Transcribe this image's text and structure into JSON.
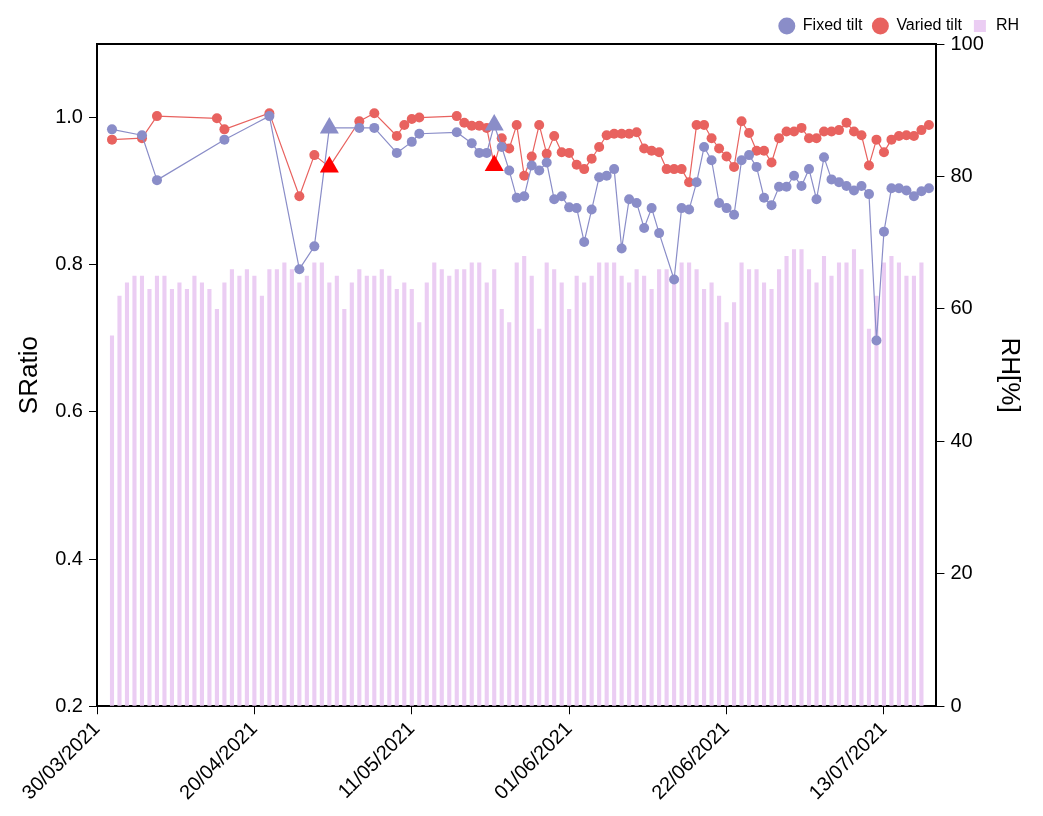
{
  "chart_data": {
    "type": "line",
    "ylabel": "SRatio",
    "y2label": "RH[%]",
    "xlim": [
      "2021-03-30",
      "2021-07-20"
    ],
    "xticks": [
      {
        "value": "2021-03-30",
        "label": "30/03/2021"
      },
      {
        "value": "2021-04-20",
        "label": "20/04/2021"
      },
      {
        "value": "2021-05-11",
        "label": "11/05/2021"
      },
      {
        "value": "2021-06-01",
        "label": "01/06/2021"
      },
      {
        "value": "2021-06-22",
        "label": "22/06/2021"
      },
      {
        "value": "2021-07-13",
        "label": "13/07/2021"
      }
    ],
    "ylim": [
      0.2,
      1.1
    ],
    "yticks": [
      0.2,
      0.4,
      0.6,
      0.8,
      {
        "value": 1.0,
        "label": "1.0"
      }
    ],
    "y2lim": [
      0,
      100
    ],
    "y2ticks": [
      0,
      20,
      40,
      60,
      80,
      100
    ],
    "grid": false,
    "legend": "top right",
    "marker": "circle",
    "x": [
      "2021-04-01",
      "2021-04-02",
      "2021-04-03",
      "2021-04-04",
      "2021-04-05",
      "2021-04-06",
      "2021-04-07",
      "2021-04-08",
      "2021-04-09",
      "2021-04-10",
      "2021-04-11",
      "2021-04-12",
      "2021-04-13",
      "2021-04-14",
      "2021-04-15",
      "2021-04-16",
      "2021-04-17",
      "2021-04-18",
      "2021-04-19",
      "2021-04-20",
      "2021-04-21",
      "2021-04-22",
      "2021-04-23",
      "2021-04-24",
      "2021-04-25",
      "2021-04-26",
      "2021-04-27",
      "2021-04-28",
      "2021-04-29",
      "2021-04-30",
      "2021-05-01",
      "2021-05-02",
      "2021-05-03",
      "2021-05-04",
      "2021-05-05",
      "2021-05-06",
      "2021-05-07",
      "2021-05-08",
      "2021-05-09",
      "2021-05-10",
      "2021-05-11",
      "2021-05-12",
      "2021-05-13",
      "2021-05-14",
      "2021-05-15",
      "2021-05-16",
      "2021-05-17",
      "2021-05-18",
      "2021-05-19",
      "2021-05-20",
      "2021-05-21",
      "2021-05-22",
      "2021-05-23",
      "2021-05-24",
      "2021-05-25",
      "2021-05-26",
      "2021-05-27",
      "2021-05-28",
      "2021-05-29",
      "2021-05-30",
      "2021-05-31",
      "2021-06-01",
      "2021-06-02",
      "2021-06-03",
      "2021-06-04",
      "2021-06-05",
      "2021-06-06",
      "2021-06-07",
      "2021-06-08",
      "2021-06-09",
      "2021-06-10",
      "2021-06-11",
      "2021-06-12",
      "2021-06-13",
      "2021-06-14",
      "2021-06-15",
      "2021-06-16",
      "2021-06-17",
      "2021-06-18",
      "2021-06-19",
      "2021-06-20",
      "2021-06-21",
      "2021-06-22",
      "2021-06-23",
      "2021-06-24",
      "2021-06-25",
      "2021-06-26",
      "2021-06-27",
      "2021-06-28",
      "2021-06-29",
      "2021-06-30",
      "2021-07-01",
      "2021-07-02",
      "2021-07-03",
      "2021-07-04",
      "2021-07-05",
      "2021-07-06",
      "2021-07-07",
      "2021-07-08",
      "2021-07-09",
      "2021-07-10",
      "2021-07-11",
      "2021-07-12",
      "2021-07-13",
      "2021-07-14",
      "2021-07-15",
      "2021-07-16",
      "2021-07-17",
      "2021-07-18"
    ],
    "series": [
      {
        "name": "Fixed tilt",
        "color": "#8a8dc8",
        "x": [
          "2021-04-01",
          "2021-04-05",
          "2021-04-07",
          "2021-04-16",
          "2021-04-22",
          "2021-04-26",
          "2021-04-28",
          "2021-04-30",
          "2021-05-04",
          "2021-05-06",
          "2021-05-09",
          "2021-05-11",
          "2021-05-12",
          "2021-05-17",
          "2021-05-19",
          "2021-05-20",
          "2021-05-21",
          "2021-05-22",
          "2021-05-23",
          "2021-05-24",
          "2021-05-25",
          "2021-05-26",
          "2021-05-27",
          "2021-05-28",
          "2021-05-29",
          "2021-05-30",
          "2021-05-31",
          "2021-06-01",
          "2021-06-02",
          "2021-06-03",
          "2021-06-04",
          "2021-06-05",
          "2021-06-06",
          "2021-06-07",
          "2021-06-08",
          "2021-06-09",
          "2021-06-10",
          "2021-06-11",
          "2021-06-12",
          "2021-06-13",
          "2021-06-15",
          "2021-06-16",
          "2021-06-17",
          "2021-06-18",
          "2021-06-19",
          "2021-06-20",
          "2021-06-21",
          "2021-06-22",
          "2021-06-23",
          "2021-06-24",
          "2021-06-25",
          "2021-06-26",
          "2021-06-27",
          "2021-06-28",
          "2021-06-29",
          "2021-06-30",
          "2021-07-01",
          "2021-07-02",
          "2021-07-03",
          "2021-07-04",
          "2021-07-05",
          "2021-07-06",
          "2021-07-07",
          "2021-07-08",
          "2021-07-09",
          "2021-07-10",
          "2021-07-11",
          "2021-07-12",
          "2021-07-13",
          "2021-07-14",
          "2021-07-15",
          "2021-07-16",
          "2021-07-17",
          "2021-07-18",
          "2021-07-19"
        ],
        "values": [
          0.984,
          0.976,
          0.915,
          0.97,
          1.002,
          0.794,
          0.825,
          0.986,
          0.986,
          0.986,
          0.952,
          0.967,
          0.978,
          0.98,
          0.965,
          0.952,
          0.952,
          0.99,
          0.96,
          0.928,
          0.891,
          0.893,
          0.935,
          0.928,
          0.939,
          0.889,
          0.893,
          0.878,
          0.877,
          0.831,
          0.875,
          0.919,
          0.921,
          0.93,
          0.822,
          0.889,
          0.884,
          0.85,
          0.877,
          0.843,
          0.78,
          0.877,
          0.875,
          0.912,
          0.96,
          0.942,
          0.884,
          0.877,
          0.868,
          0.942,
          0.949,
          0.933,
          0.891,
          0.881,
          0.906,
          0.906,
          0.921,
          0.907,
          0.93,
          0.889,
          0.946,
          0.916,
          0.912,
          0.907,
          0.901,
          0.907,
          0.896,
          0.697,
          0.845,
          0.904,
          0.904,
          0.901,
          0.893,
          0.9,
          0.904
        ]
      },
      {
        "name": "Varied tilt",
        "color": "#e8625f",
        "x": [
          "2021-04-01",
          "2021-04-05",
          "2021-04-07",
          "2021-04-15",
          "2021-04-16",
          "2021-04-22",
          "2021-04-26",
          "2021-04-28",
          "2021-04-30",
          "2021-05-04",
          "2021-05-06",
          "2021-05-09",
          "2021-05-10",
          "2021-05-11",
          "2021-05-12",
          "2021-05-17",
          "2021-05-18",
          "2021-05-19",
          "2021-05-20",
          "2021-05-21",
          "2021-05-22",
          "2021-05-23",
          "2021-05-24",
          "2021-05-25",
          "2021-05-26",
          "2021-05-27",
          "2021-05-28",
          "2021-05-29",
          "2021-05-30",
          "2021-05-31",
          "2021-06-01",
          "2021-06-02",
          "2021-06-03",
          "2021-06-04",
          "2021-06-05",
          "2021-06-06",
          "2021-06-07",
          "2021-06-08",
          "2021-06-09",
          "2021-06-10",
          "2021-06-11",
          "2021-06-12",
          "2021-06-13",
          "2021-06-14",
          "2021-06-15",
          "2021-06-16",
          "2021-06-17",
          "2021-06-18",
          "2021-06-19",
          "2021-06-20",
          "2021-06-21",
          "2021-06-22",
          "2021-06-23",
          "2021-06-24",
          "2021-06-25",
          "2021-06-26",
          "2021-06-27",
          "2021-06-28",
          "2021-06-29",
          "2021-06-30",
          "2021-07-01",
          "2021-07-02",
          "2021-07-03",
          "2021-07-04",
          "2021-07-05",
          "2021-07-06",
          "2021-07-07",
          "2021-07-08",
          "2021-07-09",
          "2021-07-10",
          "2021-07-11",
          "2021-07-12",
          "2021-07-13",
          "2021-07-14",
          "2021-07-15",
          "2021-07-16",
          "2021-07-17",
          "2021-07-18",
          "2021-07-19"
        ],
        "values": [
          0.97,
          0.972,
          1.002,
          0.999,
          0.984,
          1.006,
          0.893,
          0.949,
          0.933,
          0.995,
          1.006,
          0.975,
          0.99,
          0.998,
          1.0,
          1.002,
          0.993,
          0.989,
          0.989,
          0.986,
          0.935,
          0.972,
          0.958,
          0.99,
          0.921,
          0.947,
          0.99,
          0.951,
          0.975,
          0.953,
          0.952,
          0.936,
          0.93,
          0.944,
          0.96,
          0.976,
          0.978,
          0.978,
          0.978,
          0.98,
          0.958,
          0.955,
          0.953,
          0.93,
          0.93,
          0.93,
          0.912,
          0.99,
          0.99,
          0.972,
          0.958,
          0.947,
          0.933,
          0.995,
          0.979,
          0.955,
          0.955,
          0.939,
          0.972,
          0.981,
          0.981,
          0.986,
          0.972,
          0.972,
          0.981,
          0.981,
          0.983,
          0.993,
          0.981,
          0.976,
          0.935,
          0.97,
          0.953,
          0.97,
          0.975,
          0.976,
          0.975,
          0.983,
          0.99
        ]
      },
      {
        "name": "RH",
        "type": "bar",
        "axis": "y2",
        "color": "#ebcdf3",
        "values": [
          56,
          62,
          64,
          65,
          65,
          63,
          65,
          65,
          63,
          64,
          63,
          65,
          64,
          63,
          60,
          64,
          66,
          65,
          66,
          65,
          62,
          66,
          66,
          67,
          66,
          64,
          65,
          67,
          67,
          64,
          65,
          60,
          64,
          66,
          65,
          65,
          66,
          65,
          63,
          64,
          63,
          58,
          64,
          67,
          66,
          65,
          66,
          66,
          67,
          67,
          64,
          66,
          60,
          58,
          67,
          68,
          65,
          57,
          67,
          66,
          64,
          60,
          65,
          64,
          65,
          67,
          67,
          67,
          65,
          64,
          66,
          65,
          63,
          66,
          66,
          64,
          67,
          67,
          66,
          63,
          64,
          62,
          58,
          61,
          67,
          66,
          66,
          64,
          63,
          66,
          68,
          69,
          69,
          66,
          64,
          68,
          65,
          67,
          67,
          69,
          66,
          57,
          62,
          67,
          68,
          67,
          65,
          65,
          67
        ]
      },
      {
        "type": "scatter",
        "marker": "triangle",
        "color": "#8a8dc8",
        "x": [
          "2021-04-30",
          "2021-05-22"
        ],
        "values": [
          0.986,
          0.99
        ]
      },
      {
        "type": "scatter",
        "marker": "triangle",
        "color": "#ff0000",
        "x": [
          "2021-04-30",
          "2021-05-22"
        ],
        "values": [
          0.933,
          0.935
        ]
      }
    ]
  }
}
